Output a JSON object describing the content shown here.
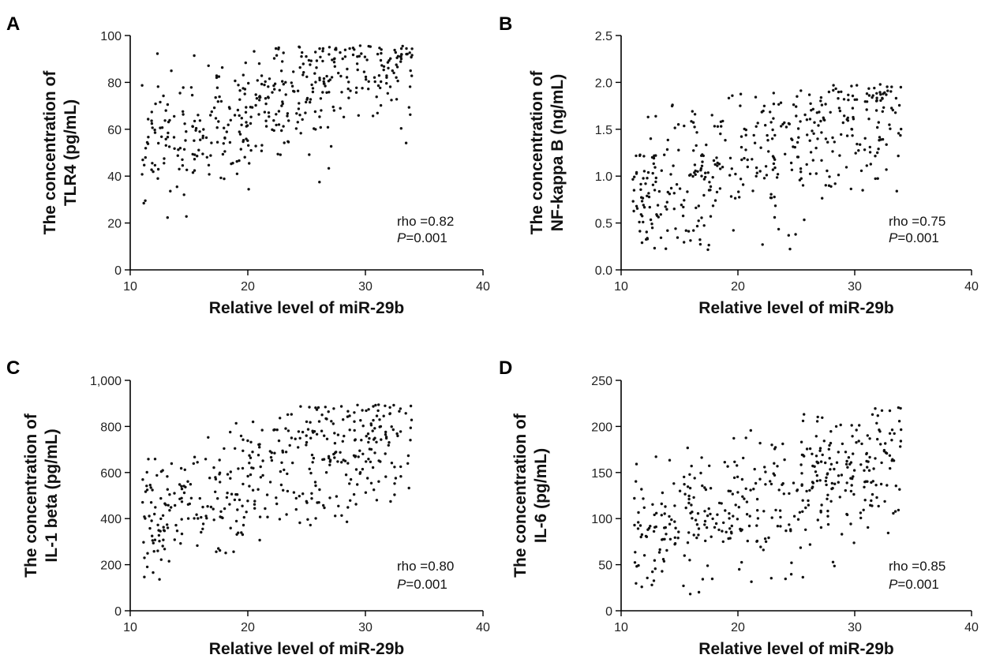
{
  "chart_data": [
    {
      "type": "scatter",
      "panel": "A",
      "xlabel": "Relative level of miR-29b",
      "ylabel": [
        "The concentration of",
        "TLR4 (pg/mL)"
      ],
      "xlim": [
        10,
        40
      ],
      "ylim": [
        0,
        100
      ],
      "xticks": [
        10,
        20,
        30,
        40
      ],
      "yticks": [
        0,
        20,
        40,
        60,
        80,
        100
      ],
      "yticklabels": [
        "0",
        "20",
        "40",
        "60",
        "80",
        "100"
      ],
      "stat_rho": "rho =0.82",
      "stat_p_label": "P",
      "stat_p_value": "=0.001",
      "n_points": 420,
      "seed": 11,
      "x_range": [
        11,
        34
      ],
      "trend": [
        30,
        1.9
      ],
      "noise": 14,
      "y_clip": [
        18,
        96
      ]
    },
    {
      "type": "scatter",
      "panel": "B",
      "xlabel": "Relative level of miR-29b",
      "ylabel": [
        "The concentration of",
        "NF-kappa B (ng/mL)"
      ],
      "xlim": [
        10,
        40
      ],
      "ylim": [
        0,
        2.5
      ],
      "xticks": [
        10,
        20,
        30,
        40
      ],
      "yticks": [
        0,
        0.5,
        1.0,
        1.5,
        2.0,
        2.5
      ],
      "yticklabels": [
        "0.0",
        "0.5",
        "1.0",
        "1.5",
        "2.0",
        "2.5"
      ],
      "stat_rho": "rho =0.75",
      "stat_p_label": "P",
      "stat_p_value": "=0.001",
      "n_points": 420,
      "seed": 23,
      "x_range": [
        11,
        34
      ],
      "trend": [
        0.35,
        0.04
      ],
      "noise": 0.38,
      "y_clip": [
        0.18,
        1.98
      ]
    },
    {
      "type": "scatter",
      "panel": "C",
      "xlabel": "Relative level of miR-29b",
      "ylabel": [
        "The concentration of",
        "IL-1 beta (pg/mL)"
      ],
      "xlim": [
        10,
        40
      ],
      "ylim": [
        0,
        1000
      ],
      "xticks": [
        10,
        20,
        30,
        40
      ],
      "yticks": [
        0,
        200,
        400,
        600,
        800,
        1000
      ],
      "yticklabels": [
        "0",
        "200",
        "400",
        "600",
        "800",
        "1,000"
      ],
      "stat_rho": "rho =0.80",
      "stat_p_label": "P",
      "stat_p_value": "=0.001",
      "n_points": 420,
      "seed": 37,
      "x_range": [
        11,
        34
      ],
      "trend": [
        210,
        17
      ],
      "noise": 150,
      "y_clip": [
        130,
        895
      ]
    },
    {
      "type": "scatter",
      "panel": "D",
      "xlabel": "Relative level of miR-29b",
      "ylabel": [
        "The concentration of",
        "IL-6 (pg/mL)"
      ],
      "xlim": [
        10,
        40
      ],
      "ylim": [
        0,
        250
      ],
      "xticks": [
        10,
        20,
        30,
        40
      ],
      "yticks": [
        0,
        50,
        100,
        150,
        200,
        250
      ],
      "yticklabels": [
        "0",
        "50",
        "100",
        "150",
        "200",
        "250"
      ],
      "stat_rho": "rho =0.85",
      "stat_p_label": "P",
      "stat_p_value": "=0.001",
      "n_points": 420,
      "seed": 53,
      "x_range": [
        11,
        34
      ],
      "trend": [
        30,
        4.2
      ],
      "noise": 38,
      "y_clip": [
        15,
        222
      ]
    }
  ]
}
